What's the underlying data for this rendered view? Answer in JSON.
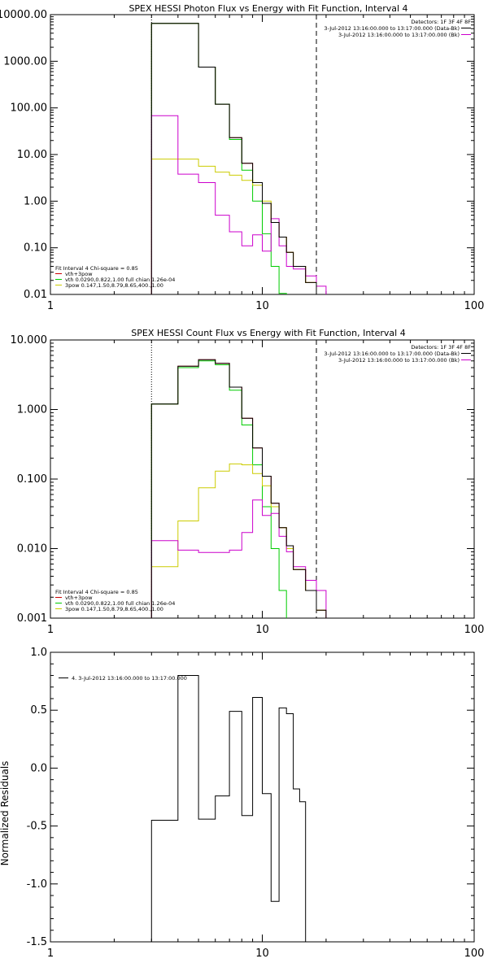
{
  "figure": {
    "background": "#ffffff",
    "axis_color": "#000000"
  },
  "colors": {
    "total": "#cc0000",
    "vth": "#00cc00",
    "pow": "#cccc00",
    "bkg": "#cc00cc",
    "data": "#000000"
  },
  "chart_data": [
    {
      "type": "line",
      "scale": "log-log",
      "title": "SPEX HESSI Photon Flux vs Energy with Fit Function, Interval 4",
      "xlim": [
        1,
        100
      ],
      "ylim": [
        0.01,
        10000
      ],
      "xticks": [
        1,
        10,
        100
      ],
      "xtick_labels": [
        "1",
        "10",
        "100"
      ],
      "yticks": [
        0.01,
        0.1,
        1,
        10,
        100,
        1000,
        10000
      ],
      "ytick_labels": [
        "0.01",
        "0.10",
        "1.00",
        "10.00",
        "100.00",
        "1000.00",
        "10000.00"
      ],
      "vlines": [
        {
          "x": 3,
          "style": "dotted"
        },
        {
          "x": 18,
          "style": "dashed"
        }
      ],
      "legend_tr": {
        "header": "Detectors: 1F 3F 4F 8F",
        "entries": [
          {
            "text": "3-Jul-2012 13:16:00.000 to 13:17:00.000 (Data-Bk)",
            "color": "#000000"
          },
          {
            "text": "3-Jul-2012 13:16:00.000 to 13:17:00.000 (Bk)",
            "color": "#cc00cc"
          }
        ]
      },
      "legend_bl": {
        "header": "Fit Interval  4   Chi-square = 0.85",
        "entries": [
          {
            "text": "vth+3pow",
            "color": "#cc0000"
          },
          {
            "text": "vth 0.0290,0.822,1.00  full chian 1.26e-04",
            "color": "#00cc00"
          },
          {
            "text": "3pow 0.147,1.50,8.79,8.65,400.,1.00",
            "color": "#cccc00"
          }
        ]
      },
      "bin_edges": [
        3,
        4,
        5,
        6,
        7,
        8,
        9,
        10,
        11,
        12,
        13,
        14,
        16,
        18,
        20
      ],
      "series": [
        {
          "name": "vth+3pow",
          "color": "#cc0000",
          "values": [
            6500,
            6500,
            750,
            120,
            23,
            6.5,
            2.5,
            0.9,
            0.35,
            0.17,
            0.08,
            0.04,
            0.018,
            0.009
          ]
        },
        {
          "name": "vth",
          "color": "#00cc00",
          "values": [
            6500,
            6500,
            750,
            120,
            21,
            4.6,
            1.0,
            0.2,
            0.04,
            0.0105
          ]
        },
        {
          "name": "3pow",
          "color": "#cccc00",
          "values": [
            8,
            8,
            5.6,
            4.2,
            3.6,
            2.8,
            2.2,
            1.0,
            0.35,
            0.17,
            0.08,
            0.04,
            0.018,
            0.009
          ]
        },
        {
          "name": "bkg",
          "color": "#cc00cc",
          "values": [
            68,
            3.8,
            2.5,
            0.5,
            0.22,
            0.11,
            0.19,
            0.085,
            0.42,
            0.11,
            0.04,
            0.035,
            0.025,
            0.015
          ]
        },
        {
          "name": "data",
          "color": "#000000",
          "values": [
            6500,
            6500,
            750,
            120,
            23,
            6.5,
            2.5,
            0.9,
            0.35,
            0.17,
            0.08,
            0.04,
            0.018,
            0.009
          ]
        }
      ]
    },
    {
      "type": "line",
      "scale": "log-log",
      "title": "SPEX HESSI Count Flux vs Energy with Fit Function, Interval 4",
      "xlim": [
        1,
        100
      ],
      "ylim": [
        0.001,
        10
      ],
      "xticks": [
        1,
        10,
        100
      ],
      "xtick_labels": [
        "1",
        "10",
        "100"
      ],
      "yticks": [
        0.001,
        0.01,
        0.1,
        1,
        10
      ],
      "ytick_labels": [
        "0.001",
        "0.010",
        "0.100",
        "1.000",
        "10.000"
      ],
      "vlines": [
        {
          "x": 3,
          "style": "dotted"
        },
        {
          "x": 18,
          "style": "dashed"
        }
      ],
      "legend_tr": {
        "header": "Detectors: 1F 3F 4F 8F",
        "entries": [
          {
            "text": "3-Jul-2012 13:16:00.000 to 13:17:00.000 (Data-Bk)",
            "color": "#000000"
          },
          {
            "text": "3-Jul-2012 13:16:00.000 to 13:17:00.000 (Bk)",
            "color": "#cc00cc"
          }
        ]
      },
      "legend_bl": {
        "header": "Fit Interval  4   Chi-square = 0.85",
        "entries": [
          {
            "text": "vth+3pow",
            "color": "#cc0000"
          },
          {
            "text": "vth 0.0290,0.822,1.00  full chian 1.26e-04",
            "color": "#00cc00"
          },
          {
            "text": "3pow 0.147,1.50,8.79,8.65,400.,1.00",
            "color": "#cccc00"
          }
        ]
      },
      "bin_edges": [
        3,
        4,
        5,
        6,
        7,
        8,
        9,
        10,
        11,
        12,
        13,
        14,
        16,
        18,
        20
      ],
      "series": [
        {
          "name": "vth+3pow",
          "color": "#cc0000",
          "values": [
            1.2,
            4.2,
            5.2,
            4.6,
            2.1,
            0.75,
            0.28,
            0.11,
            0.045,
            0.02,
            0.011,
            0.005,
            0.0025,
            0.0013
          ]
        },
        {
          "name": "vth",
          "color": "#00cc00",
          "values": [
            1.2,
            4.0,
            5.0,
            4.4,
            1.9,
            0.6,
            0.16,
            0.04,
            0.01,
            0.0025,
            0.0009
          ]
        },
        {
          "name": "3pow",
          "color": "#cccc00",
          "values": [
            0.0055,
            0.025,
            0.075,
            0.13,
            0.165,
            0.16,
            0.12,
            0.08,
            0.04,
            0.02,
            0.01,
            0.005,
            0.0025,
            0.0013
          ]
        },
        {
          "name": "bkg",
          "color": "#cc00cc",
          "values": [
            0.013,
            0.0095,
            0.0088,
            0.0088,
            0.0095,
            0.017,
            0.05,
            0.03,
            0.032,
            0.015,
            0.009,
            0.0055,
            0.0035,
            0.0025
          ]
        },
        {
          "name": "data",
          "color": "#000000",
          "values": [
            1.2,
            4.2,
            5.2,
            4.6,
            2.1,
            0.75,
            0.28,
            0.11,
            0.045,
            0.02,
            0.011,
            0.005,
            0.0025,
            0.0013
          ]
        }
      ]
    },
    {
      "type": "line",
      "scale": "log-x",
      "title": "",
      "ylabel": "Normalized Residuals",
      "xlim": [
        1,
        100
      ],
      "ylim": [
        -1.5,
        1.0
      ],
      "xticks": [
        1,
        10,
        100
      ],
      "xtick_labels": [
        "1",
        "10",
        "100"
      ],
      "yticks": [
        -1.5,
        -1.0,
        -0.5,
        0.0,
        0.5,
        1.0
      ],
      "ytick_labels": [
        "-1.5",
        "-1.0",
        "-0.5",
        "0.0",
        "0.5",
        "1.0"
      ],
      "legend_tl": {
        "entries": [
          {
            "text": "4. 3-Jul-2012 13:16:00.000 to 13:17:00.000",
            "color": "#000000"
          }
        ]
      },
      "bin_edges": [
        3,
        4,
        5,
        6,
        7,
        8,
        9,
        10,
        11,
        12,
        13,
        14,
        15,
        16,
        18
      ],
      "series": [
        {
          "name": "residuals",
          "color": "#000000",
          "values": [
            -0.45,
            0.8,
            -0.44,
            -0.24,
            0.49,
            -0.41,
            0.61,
            -0.22,
            -1.15,
            0.52,
            0.47,
            -0.18,
            -0.29
          ]
        }
      ]
    }
  ]
}
